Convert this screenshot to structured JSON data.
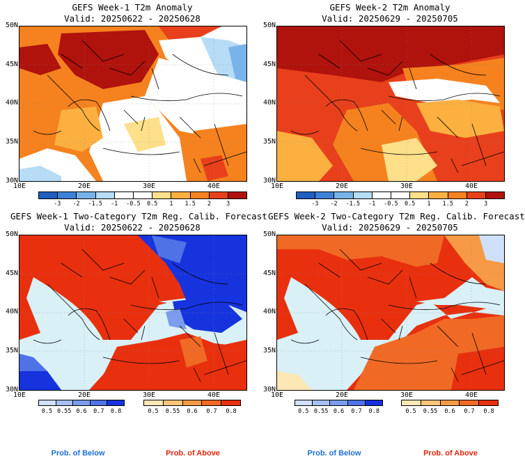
{
  "panels": [
    {
      "title_line1": "GEFS Week-1 T2m Anomaly",
      "title_line2": "Valid: 20250622 - 20250628"
    },
    {
      "title_line1": "GEFS Week-2 T2m Anomaly",
      "title_line2": "Valid: 20250629 - 20250705"
    },
    {
      "title_line1": "GEFS Week-1 Two-Category T2m Reg. Calib. Forecast",
      "title_line2": "Valid: 20250622 - 20250628"
    },
    {
      "title_line1": "GEFS Week-2 Two-Category T2m Reg. Calib. Forecast",
      "title_line2": "Valid: 20250629 - 20250705"
    }
  ],
  "map": {
    "lat_labels": [
      "50N",
      "45N",
      "40N",
      "35N",
      "30N"
    ],
    "lon_labels": [
      "10E",
      "20E",
      "30E",
      "40E"
    ]
  },
  "anomaly_colorbar": {
    "ticks": [
      "-3",
      "-2",
      "-1.5",
      "-1",
      "-0.5",
      "0.5",
      "1",
      "1.5",
      "2",
      "3"
    ],
    "colors": [
      "#1f5fbf",
      "#3c82d8",
      "#78b4ea",
      "#b6dcf6",
      "#ffffff",
      "#ffffff",
      "#ffe08a",
      "#fbb040",
      "#f5821f",
      "#e8401c",
      "#b0120c"
    ]
  },
  "prob_below_colorbar": {
    "ticks": [
      "0.5",
      "0.55",
      "0.6",
      "0.7",
      "0.8"
    ],
    "colors": [
      "#cfe0fb",
      "#a6c0f4",
      "#7c9ced",
      "#4f73e6",
      "#1633de"
    ]
  },
  "prob_above_colorbar": {
    "ticks": [
      "0.5",
      "0.55",
      "0.6",
      "0.7",
      "0.8"
    ],
    "colors": [
      "#fde7b5",
      "#fbc479",
      "#f79a45",
      "#f06a25",
      "#e8300f"
    ]
  },
  "legend": {
    "below_label": "Prob. of Below",
    "above_label": "Prob. of Above",
    "below_color": "#1e6fd6",
    "above_color": "#e3260f"
  },
  "colors": {
    "sea_probability": "#d8f0f6",
    "border": "#000000"
  }
}
